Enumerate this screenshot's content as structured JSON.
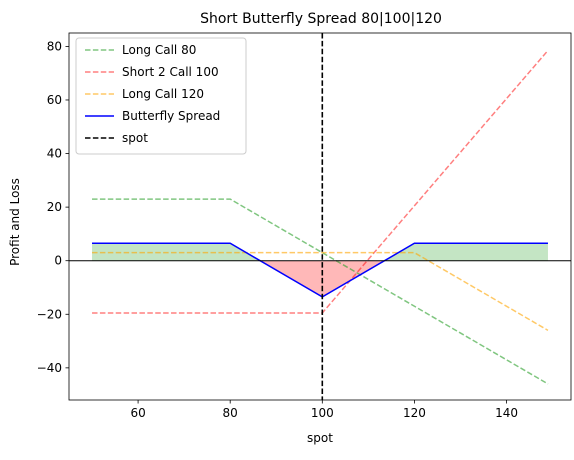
{
  "chart_data": {
    "type": "line",
    "title": "Short Butterfly Spread 80|100|120",
    "xlabel": "spot",
    "ylabel": "Profit and Loss",
    "xlim": [
      45,
      154
    ],
    "ylim": [
      -52,
      85
    ],
    "xticks": [
      60,
      80,
      100,
      120,
      140
    ],
    "yticks": [
      -40,
      -20,
      0,
      20,
      40,
      60,
      80
    ],
    "x_range": [
      50,
      149
    ],
    "spot": 100,
    "grid": false,
    "legend_position": "top-left",
    "series": [
      {
        "name": "Long Call 80",
        "style": "dashed",
        "color": "#2ca02c",
        "opacity": 0.6,
        "x": [
          50,
          80,
          149
        ],
        "y": [
          23,
          23,
          -46
        ]
      },
      {
        "name": "Short 2 Call 100",
        "style": "dashed",
        "color": "#ff0000",
        "opacity": 0.5,
        "x": [
          50,
          100,
          149
        ],
        "y": [
          -19.5,
          -19.5,
          78.5
        ]
      },
      {
        "name": "Long Call 120",
        "style": "dashed",
        "color": "#ffa500",
        "opacity": 0.6,
        "x": [
          50,
          120,
          149
        ],
        "y": [
          3,
          3,
          -26
        ]
      },
      {
        "name": "Butterfly Spread",
        "style": "solid",
        "color": "#0000ff",
        "opacity": 1,
        "x": [
          50,
          80,
          100,
          120,
          149
        ],
        "y": [
          6.5,
          6.5,
          -13.5,
          6.5,
          6.5
        ]
      }
    ],
    "spot_line": {
      "name": "spot",
      "style": "dashed",
      "color": "#000000"
    },
    "fill": {
      "positive_color": "#2ca02c",
      "negative_color": "#ff0000",
      "opacity": 0.28
    }
  }
}
